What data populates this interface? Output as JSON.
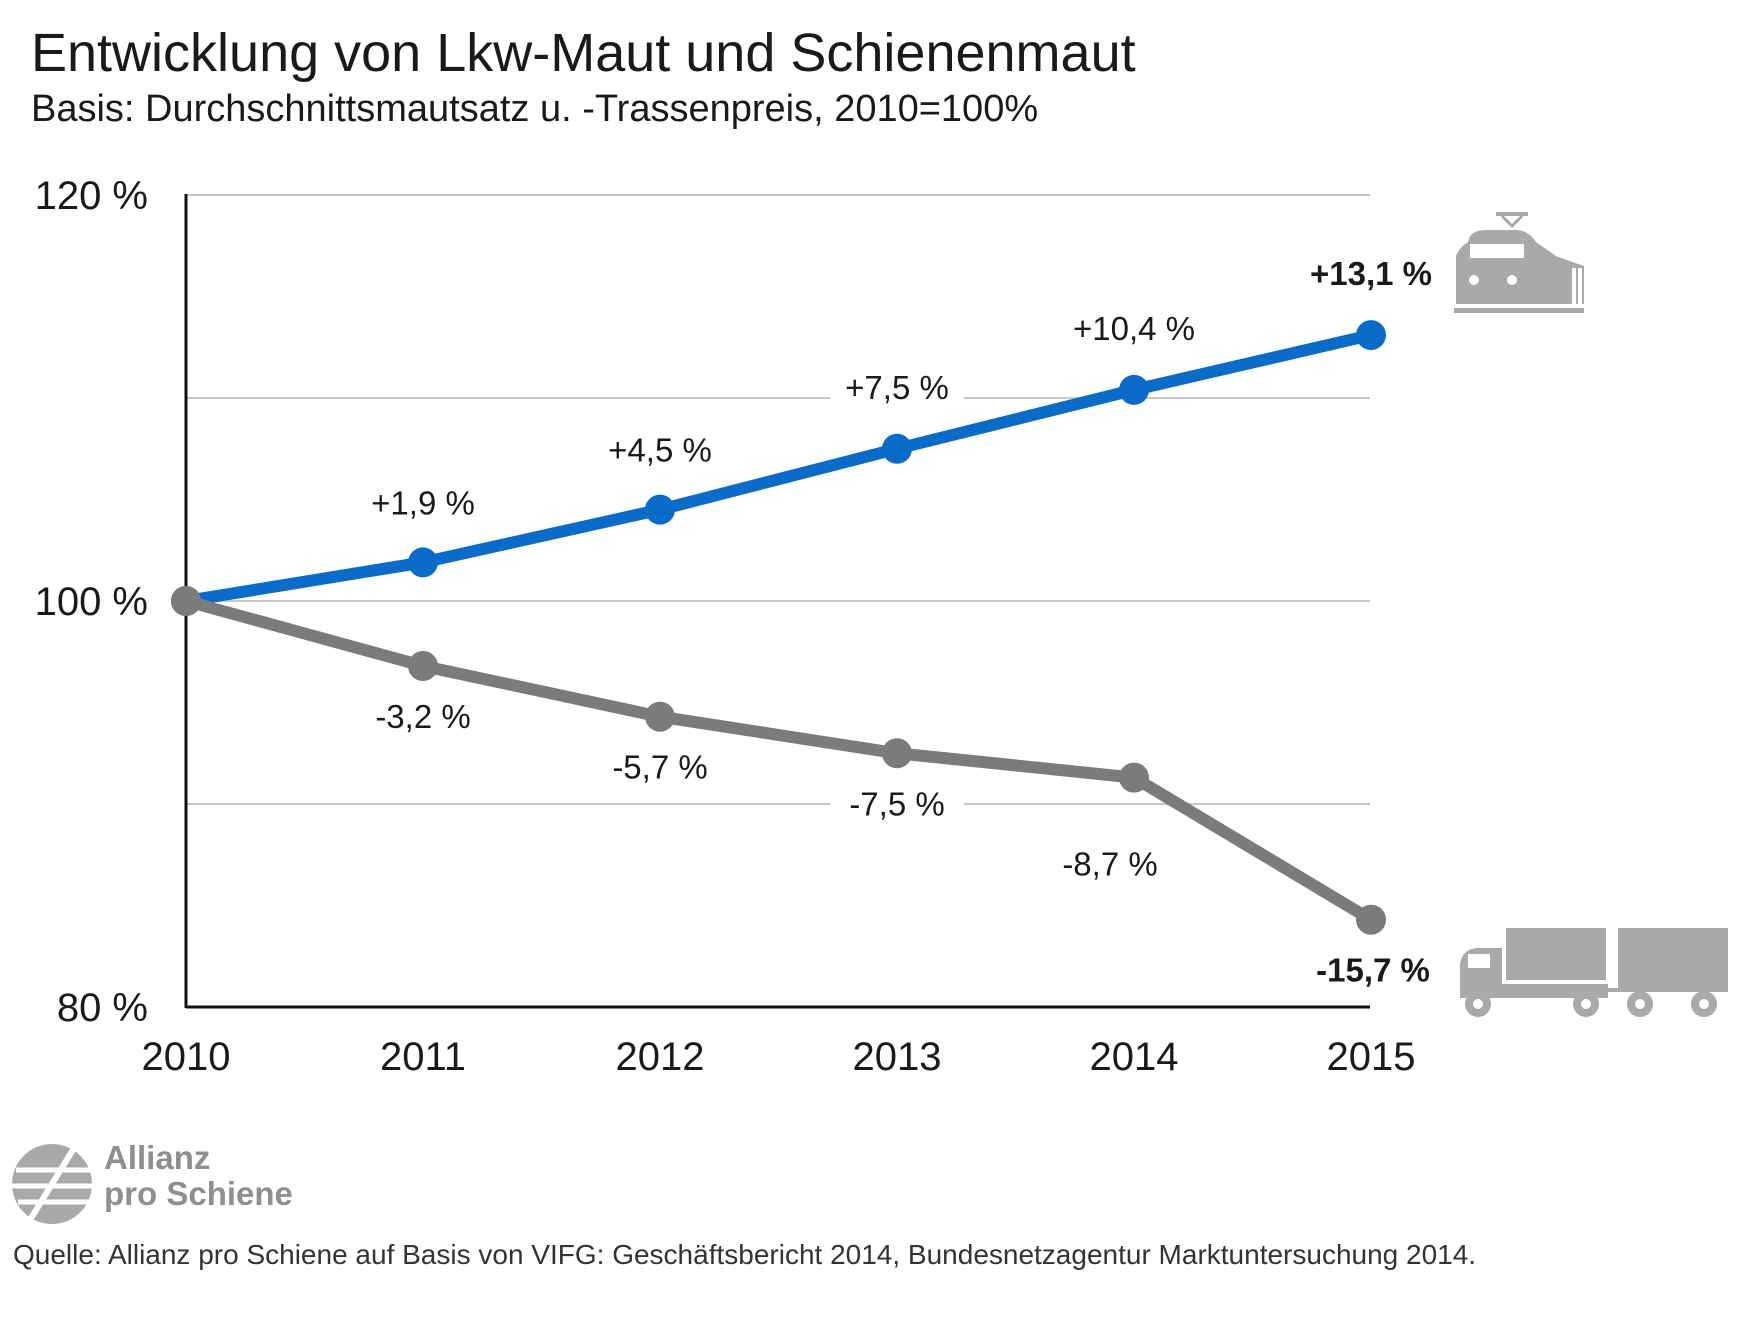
{
  "title": "Entwicklung von Lkw-Maut und Schienenmaut",
  "subtitle": "Basis: Durchschnittsmautsatz u. -Trassenpreis, 2010=100%",
  "source": "Quelle: Allianz pro Schiene auf Basis von VIFG: Geschäftsbericht 2014, Bundesnetzagentur Marktuntersuchung 2014.",
  "logo": {
    "line1": "Allianz",
    "line2": "pro Schiene"
  },
  "icons": {
    "rail": "train-icon",
    "road": "truck-trailer-icon"
  },
  "colors": {
    "rail": "#0a6cc8",
    "road": "#7b7b7b",
    "grid": "#c8c8c8",
    "icon": "#a9a9a9"
  },
  "chart_data": {
    "type": "line",
    "x": [
      "2010",
      "2011",
      "2012",
      "2013",
      "2014",
      "2015"
    ],
    "ylim": [
      80,
      120
    ],
    "yticks": [
      80,
      100,
      120
    ],
    "ytick_labels": [
      "80 %",
      "100 %",
      "120 %"
    ],
    "grid": true,
    "series": [
      {
        "key": "rail",
        "values": [
          100,
          101.9,
          104.5,
          107.5,
          110.4,
          113.1
        ],
        "labels": [
          "",
          "+1,9 %",
          "+4,5 %",
          "+7,5 %",
          "+10,4 %",
          "+13,1 %"
        ]
      },
      {
        "key": "road",
        "values": [
          100,
          96.8,
          94.3,
          92.5,
          91.3,
          84.3
        ],
        "labels": [
          "",
          "-3,2 %",
          "-5,7 %",
          "-7,5 %",
          "-8,7 %",
          "-15,7 %"
        ]
      }
    ]
  }
}
